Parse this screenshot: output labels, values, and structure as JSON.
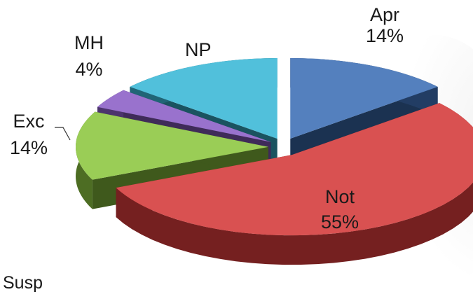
{
  "chart_data": {
    "type": "pie",
    "title": "",
    "slices": [
      {
        "name": "Apr",
        "value": 14,
        "label_value": "14%",
        "color": "#3d6fb5"
      },
      {
        "name": "Not",
        "value": 55,
        "label_value": "55%",
        "color": "#d43a3a"
      },
      {
        "name": "Exc",
        "value": 14,
        "label_value": "14%",
        "color": "#8cc63f"
      },
      {
        "name": "MH",
        "value": 4,
        "label_value": "4%",
        "color": "#8b5fc6"
      },
      {
        "name": "NP",
        "value": 14,
        "label_value": "",
        "color": "#3ab8d6"
      }
    ],
    "exploded": true,
    "style": "3d"
  },
  "footer": {
    "text": "Susp"
  }
}
